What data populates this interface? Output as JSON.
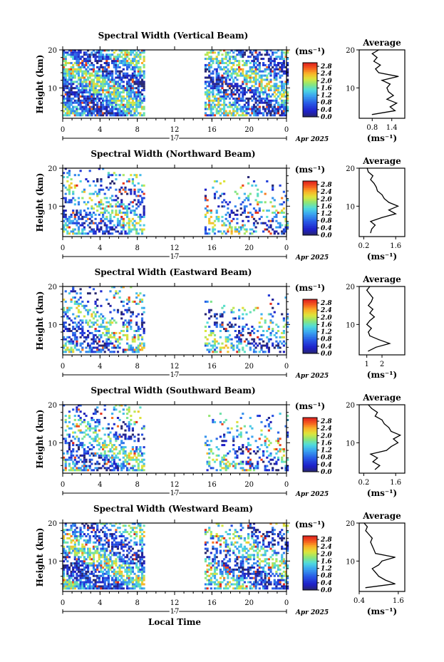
{
  "chart_data": [
    {
      "type": "heatmap",
      "title": "Spectral Width (Vertical Beam)",
      "ylabel": "Height (km)",
      "ylim": [
        2,
        20
      ],
      "xlim": [
        0,
        24
      ],
      "x_ticks": [
        "0",
        "4",
        "8",
        "12",
        "16",
        "20",
        "0"
      ],
      "y_ticks": [
        "20",
        "10"
      ],
      "date_label": "17",
      "month_label": "Apr 2025",
      "data_gap_local_time": [
        8.8,
        15
      ],
      "colorbar": {
        "unit": "(ms⁻¹)",
        "ticks": [
          "2.8",
          "2.4",
          "2.0",
          "1.6",
          "1.2",
          "0.8",
          "0.4",
          "0.0"
        ],
        "range": [
          0.0,
          3.0
        ]
      },
      "average": {
        "title": "Average",
        "xlabel": "(ms⁻¹)",
        "xlim": [
          0.4,
          1.8
        ],
        "x_ticks": [
          "0.8",
          "1.4"
        ],
        "y_ticks": [
          "20",
          "10"
        ],
        "heights": [
          3,
          4,
          5,
          6,
          7,
          8,
          9,
          10,
          11,
          12,
          13,
          14,
          15,
          16,
          17,
          18,
          19,
          20
        ],
        "values": [
          0.8,
          1.5,
          1.35,
          1.55,
          1.25,
          1.45,
          1.3,
          1.25,
          1.35,
          1.1,
          1.6,
          1.0,
          0.9,
          1.05,
          0.85,
          0.95,
          0.8,
          1.0
        ]
      }
    },
    {
      "type": "heatmap",
      "title": "Spectral Width (Northward Beam)",
      "ylabel": "Height (km)",
      "ylim": [
        2,
        20
      ],
      "xlim": [
        0,
        24
      ],
      "x_ticks": [
        "0",
        "4",
        "8",
        "12",
        "16",
        "20",
        "0"
      ],
      "y_ticks": [
        "20",
        "10"
      ],
      "date_label": "17",
      "month_label": "Apr 2025",
      "data_gap_local_time": [
        8.8,
        15
      ],
      "colorbar": {
        "unit": "(ms⁻¹)",
        "ticks": [
          "2.8",
          "2.4",
          "2.0",
          "1.6",
          "1.2",
          "0.8",
          "0.4",
          "0.0"
        ],
        "range": [
          0.0,
          3.0
        ]
      },
      "average": {
        "title": "Average",
        "xlabel": "(ms⁻¹)",
        "xlim": [
          0.0,
          2.0
        ],
        "x_ticks": [
          "0.2",
          "1.6"
        ],
        "y_ticks": [
          "20",
          "10"
        ],
        "heights": [
          3,
          4,
          5,
          6,
          7,
          8,
          9,
          10,
          11,
          12,
          13,
          14,
          15,
          16,
          17,
          18,
          19,
          20
        ],
        "values": [
          0.5,
          0.55,
          0.7,
          0.5,
          1.0,
          1.6,
          1.3,
          1.7,
          1.3,
          1.1,
          1.0,
          0.8,
          0.75,
          0.65,
          0.5,
          0.6,
          0.4,
          0.35
        ]
      }
    },
    {
      "type": "heatmap",
      "title": "Spectral Width (Eastward Beam)",
      "ylabel": "Height (km)",
      "ylim": [
        2,
        20
      ],
      "xlim": [
        0,
        24
      ],
      "x_ticks": [
        "0",
        "4",
        "8",
        "12",
        "16",
        "20",
        "0"
      ],
      "y_ticks": [
        "20",
        "10"
      ],
      "date_label": "17",
      "month_label": "Apr 2025",
      "data_gap_local_time": [
        8.8,
        15
      ],
      "colorbar": {
        "unit": "(ms⁻¹)",
        "ticks": [
          "2.8",
          "2.4",
          "2.0",
          "1.6",
          "1.2",
          "0.8",
          "0.4",
          "0.0"
        ],
        "range": [
          0.0,
          3.0
        ]
      },
      "average": {
        "title": "Average",
        "xlabel": "(ms⁻¹)",
        "xlim": [
          0.5,
          3.5
        ],
        "x_ticks": [
          "1",
          "2"
        ],
        "y_ticks": [
          "20",
          "10"
        ],
        "heights": [
          3,
          4,
          5,
          6,
          7,
          8,
          9,
          10,
          11,
          12,
          13,
          14,
          15,
          16,
          17,
          18,
          19,
          20
        ],
        "values": [
          1.1,
          1.6,
          2.5,
          1.8,
          1.2,
          1.1,
          1.3,
          1.0,
          1.2,
          1.5,
          1.2,
          1.4,
          1.1,
          1.3,
          1.4,
          1.2,
          1.0,
          1.2
        ]
      }
    },
    {
      "type": "heatmap",
      "title": "Spectral Width (Southward Beam)",
      "ylabel": "Height (km)",
      "ylim": [
        2,
        20
      ],
      "xlim": [
        0,
        24
      ],
      "x_ticks": [
        "0",
        "4",
        "8",
        "12",
        "16",
        "20",
        "0"
      ],
      "y_ticks": [
        "20",
        "10"
      ],
      "date_label": "17",
      "month_label": "Apr 2025",
      "data_gap_local_time": [
        8.8,
        15
      ],
      "colorbar": {
        "unit": "(ms⁻¹)",
        "ticks": [
          "2.8",
          "2.4",
          "2.0",
          "1.6",
          "1.2",
          "0.8",
          "0.4",
          "0.0"
        ],
        "range": [
          0.0,
          3.0
        ]
      },
      "average": {
        "title": "Average",
        "xlabel": "(ms⁻¹)",
        "xlim": [
          0.0,
          2.0
        ],
        "x_ticks": [
          "0.2",
          "1.6"
        ],
        "y_ticks": [
          "20",
          "10"
        ],
        "heights": [
          3,
          4,
          5,
          6,
          7,
          8,
          9,
          10,
          11,
          12,
          13,
          14,
          15,
          16,
          17,
          18,
          19,
          20
        ],
        "values": [
          0.7,
          0.9,
          0.6,
          0.8,
          0.5,
          1.2,
          1.4,
          1.7,
          1.5,
          1.8,
          1.4,
          1.3,
          1.1,
          1.0,
          0.7,
          0.8,
          0.55,
          0.4
        ]
      }
    },
    {
      "type": "heatmap",
      "title": "Spectral Width (Westward Beam)",
      "ylabel": "Height (km)",
      "xlabel": "Local Time",
      "ylim": [
        2,
        20
      ],
      "xlim": [
        0,
        24
      ],
      "x_ticks": [
        "0",
        "4",
        "8",
        "12",
        "16",
        "20",
        "0"
      ],
      "y_ticks": [
        "20",
        "10"
      ],
      "date_label": "17",
      "month_label": "Apr 2025",
      "data_gap_local_time": [
        8.8,
        15
      ],
      "colorbar": {
        "unit": "(ms⁻¹)",
        "ticks": [
          "2.8",
          "2.4",
          "2.0",
          "1.6",
          "1.2",
          "0.8",
          "0.4",
          "0.0"
        ],
        "range": [
          0.0,
          3.0
        ]
      },
      "average": {
        "title": "Average",
        "xlabel": "(ms⁻¹)",
        "xlim": [
          0.4,
          1.8
        ],
        "x_ticks": [
          "0.4",
          "1.6"
        ],
        "y_ticks": [
          "20",
          "10"
        ],
        "heights": [
          3,
          4,
          5,
          6,
          7,
          8,
          9,
          10,
          11,
          12,
          13,
          14,
          15,
          16,
          17,
          18,
          19,
          20
        ],
        "values": [
          0.6,
          1.5,
          1.2,
          1.0,
          0.9,
          0.8,
          1.0,
          1.1,
          1.5,
          0.9,
          0.85,
          0.8,
          0.75,
          0.8,
          0.7,
          0.6,
          0.65,
          0.55
        ]
      }
    }
  ]
}
